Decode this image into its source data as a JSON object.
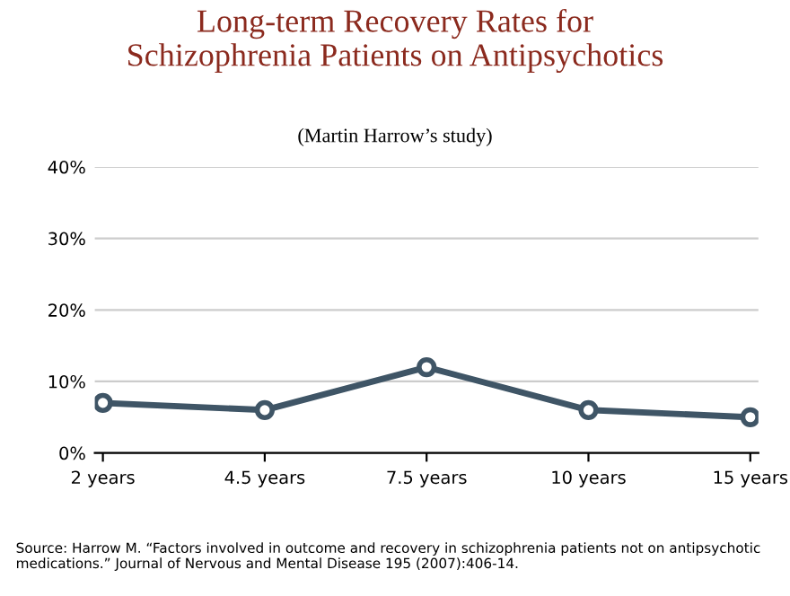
{
  "chart_data": {
    "type": "line",
    "title": "Long-term Recovery Rates for\nSchizophrenia Patients on Antipsychotics",
    "subtitle": "(Martin Harrow’s study)",
    "categories": [
      "2 years",
      "4.5 years",
      "7.5 years",
      "10 years",
      "15 years"
    ],
    "series": [
      {
        "color": "#3f5566",
        "values": [
          7,
          6,
          12,
          6,
          5
        ]
      }
    ],
    "ylim": [
      0,
      40
    ],
    "yticks": [
      {
        "value": 0,
        "label": "0%"
      },
      {
        "value": 10,
        "label": "10%"
      },
      {
        "value": 20,
        "label": "20%"
      },
      {
        "value": 30,
        "label": "30%"
      },
      {
        "value": 40,
        "label": "40%"
      }
    ],
    "grid": "y",
    "marker": "circle",
    "line_style": "solid",
    "annotations": [
      "Source: Harrow M. “Factors involved in outcome and recovery in schizophrenia patients not on antipsychotic medications.” Journal of Nervous and Mental Disease 195 (2007):406-14."
    ]
  }
}
